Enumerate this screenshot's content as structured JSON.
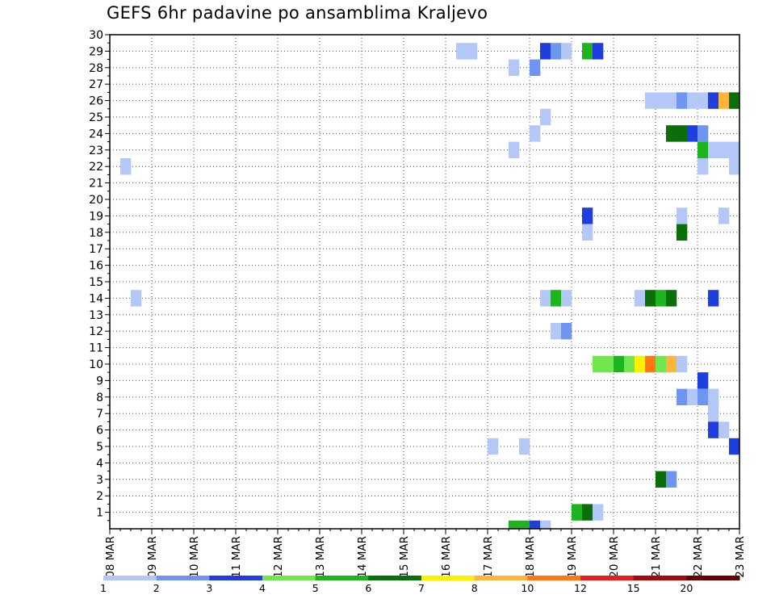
{
  "chart_data": {
    "type": "heatmap",
    "title": "GEFS 6hr padavine po ansamblima Kraljevo",
    "x_tick_labels": [
      "08 MAR",
      "09 MAR",
      "10 MAR",
      "11 MAR",
      "12 MAR",
      "13 MAR",
      "14 MAR",
      "15 MAR",
      "16 MAR",
      "17 MAR",
      "18 MAR",
      "19 MAR",
      "20 MAR",
      "21 MAR",
      "22 MAR",
      "23 MAR"
    ],
    "x_range_days": [
      0,
      15
    ],
    "y_tick_labels": [
      "1",
      "2",
      "3",
      "4",
      "5",
      "6",
      "7",
      "8",
      "9",
      "10",
      "11",
      "12",
      "13",
      "14",
      "15",
      "16",
      "17",
      "18",
      "19",
      "20",
      "21",
      "22",
      "23",
      "24",
      "25",
      "26",
      "27",
      "28",
      "29",
      "30"
    ],
    "y_range": [
      0,
      30
    ],
    "grid": true,
    "legend_position": "bottom",
    "colorbar": {
      "colors": [
        "#b4c8f8",
        "#6e96f0",
        "#1e3ee0",
        "#72e64e",
        "#1eb41e",
        "#0a6e0a",
        "#fff000",
        "#ffb43c",
        "#ff7814",
        "#e61e1e",
        "#a00a0a",
        "#640000"
      ],
      "labels": [
        "1",
        "2",
        "3",
        "4",
        "5",
        "6",
        "7",
        "8",
        "10",
        "12",
        "15",
        "20"
      ]
    },
    "cells_note": "each cell: member (y), day offset from 08 MAR at 6-hour step start (x), color-class index into colorbar.colors",
    "cells": [
      {
        "m": 29,
        "d": 8.25,
        "c": 0
      },
      {
        "m": 29,
        "d": 8.5,
        "c": 0
      },
      {
        "m": 29,
        "d": 10.25,
        "c": 2
      },
      {
        "m": 29,
        "d": 10.5,
        "c": 1
      },
      {
        "m": 29,
        "d": 10.75,
        "c": 0
      },
      {
        "m": 29,
        "d": 11.25,
        "c": 4
      },
      {
        "m": 29,
        "d": 11.5,
        "c": 2
      },
      {
        "m": 28,
        "d": 9.5,
        "c": 0
      },
      {
        "m": 28,
        "d": 10,
        "c": 1
      },
      {
        "m": 26,
        "d": 12.75,
        "c": 0
      },
      {
        "m": 26,
        "d": 13,
        "c": 0
      },
      {
        "m": 26,
        "d": 13.25,
        "c": 0
      },
      {
        "m": 26,
        "d": 13.5,
        "c": 1
      },
      {
        "m": 26,
        "d": 13.75,
        "c": 0
      },
      {
        "m": 26,
        "d": 14,
        "c": 0
      },
      {
        "m": 26,
        "d": 14.25,
        "c": 2
      },
      {
        "m": 26,
        "d": 14.5,
        "c": 7
      },
      {
        "m": 26,
        "d": 14.75,
        "c": 5
      },
      {
        "m": 25,
        "d": 10.25,
        "c": 0
      },
      {
        "m": 24,
        "d": 10,
        "c": 0
      },
      {
        "m": 24,
        "d": 13.25,
        "c": 5
      },
      {
        "m": 24,
        "d": 13.5,
        "c": 5
      },
      {
        "m": 24,
        "d": 13.75,
        "c": 2
      },
      {
        "m": 24,
        "d": 14,
        "c": 1
      },
      {
        "m": 23,
        "d": 9.5,
        "c": 0
      },
      {
        "m": 23,
        "d": 14,
        "c": 4
      },
      {
        "m": 23,
        "d": 14.25,
        "c": 0
      },
      {
        "m": 23,
        "d": 14.5,
        "c": 0
      },
      {
        "m": 23,
        "d": 14.75,
        "c": 0
      },
      {
        "m": 22,
        "d": 0.25,
        "c": 0
      },
      {
        "m": 22,
        "d": 14,
        "c": 0
      },
      {
        "m": 22,
        "d": 14.75,
        "c": 0
      },
      {
        "m": 19,
        "d": 11.25,
        "c": 2
      },
      {
        "m": 19,
        "d": 13.5,
        "c": 0
      },
      {
        "m": 19,
        "d": 14.5,
        "c": 0
      },
      {
        "m": 18,
        "d": 11.25,
        "c": 0
      },
      {
        "m": 18,
        "d": 13.5,
        "c": 5
      },
      {
        "m": 14,
        "d": 0.5,
        "c": 0
      },
      {
        "m": 14,
        "d": 10.25,
        "c": 0
      },
      {
        "m": 14,
        "d": 10.5,
        "c": 4
      },
      {
        "m": 14,
        "d": 10.75,
        "c": 0
      },
      {
        "m": 14,
        "d": 12.5,
        "c": 0
      },
      {
        "m": 14,
        "d": 12.75,
        "c": 5
      },
      {
        "m": 14,
        "d": 13,
        "c": 4
      },
      {
        "m": 14,
        "d": 13.25,
        "c": 5
      },
      {
        "m": 14,
        "d": 14.25,
        "c": 2
      },
      {
        "m": 12,
        "d": 10.5,
        "c": 0
      },
      {
        "m": 12,
        "d": 10.75,
        "c": 1
      },
      {
        "m": 10,
        "d": 11.5,
        "c": 3
      },
      {
        "m": 10,
        "d": 11.75,
        "c": 3
      },
      {
        "m": 10,
        "d": 12,
        "c": 4
      },
      {
        "m": 10,
        "d": 12.25,
        "c": 3
      },
      {
        "m": 10,
        "d": 12.5,
        "c": 6
      },
      {
        "m": 10,
        "d": 12.75,
        "c": 8
      },
      {
        "m": 10,
        "d": 13,
        "c": 3
      },
      {
        "m": 10,
        "d": 13.25,
        "c": 7
      },
      {
        "m": 10,
        "d": 13.5,
        "c": 0
      },
      {
        "m": 9,
        "d": 14,
        "c": 2
      },
      {
        "m": 8,
        "d": 13.5,
        "c": 1
      },
      {
        "m": 8,
        "d": 13.75,
        "c": 0
      },
      {
        "m": 8,
        "d": 14,
        "c": 1
      },
      {
        "m": 8,
        "d": 14.25,
        "c": 0
      },
      {
        "m": 7,
        "d": 14.25,
        "c": 0
      },
      {
        "m": 6,
        "d": 14.25,
        "c": 2
      },
      {
        "m": 6,
        "d": 14.5,
        "c": 0
      },
      {
        "m": 5,
        "d": 9,
        "c": 0
      },
      {
        "m": 5,
        "d": 9.75,
        "c": 0
      },
      {
        "m": 5,
        "d": 14.75,
        "c": 2
      },
      {
        "m": 3,
        "d": 13,
        "c": 5
      },
      {
        "m": 3,
        "d": 13.25,
        "c": 1
      },
      {
        "m": 1,
        "d": 11,
        "c": 4
      },
      {
        "m": 1,
        "d": 11.25,
        "c": 5
      },
      {
        "m": 1,
        "d": 11.5,
        "c": 0
      },
      {
        "m": 0,
        "d": 9.5,
        "c": 4
      },
      {
        "m": 0,
        "d": 9.75,
        "c": 4
      },
      {
        "m": 0,
        "d": 10,
        "c": 2
      },
      {
        "m": 0,
        "d": 10.25,
        "c": 0
      }
    ]
  }
}
